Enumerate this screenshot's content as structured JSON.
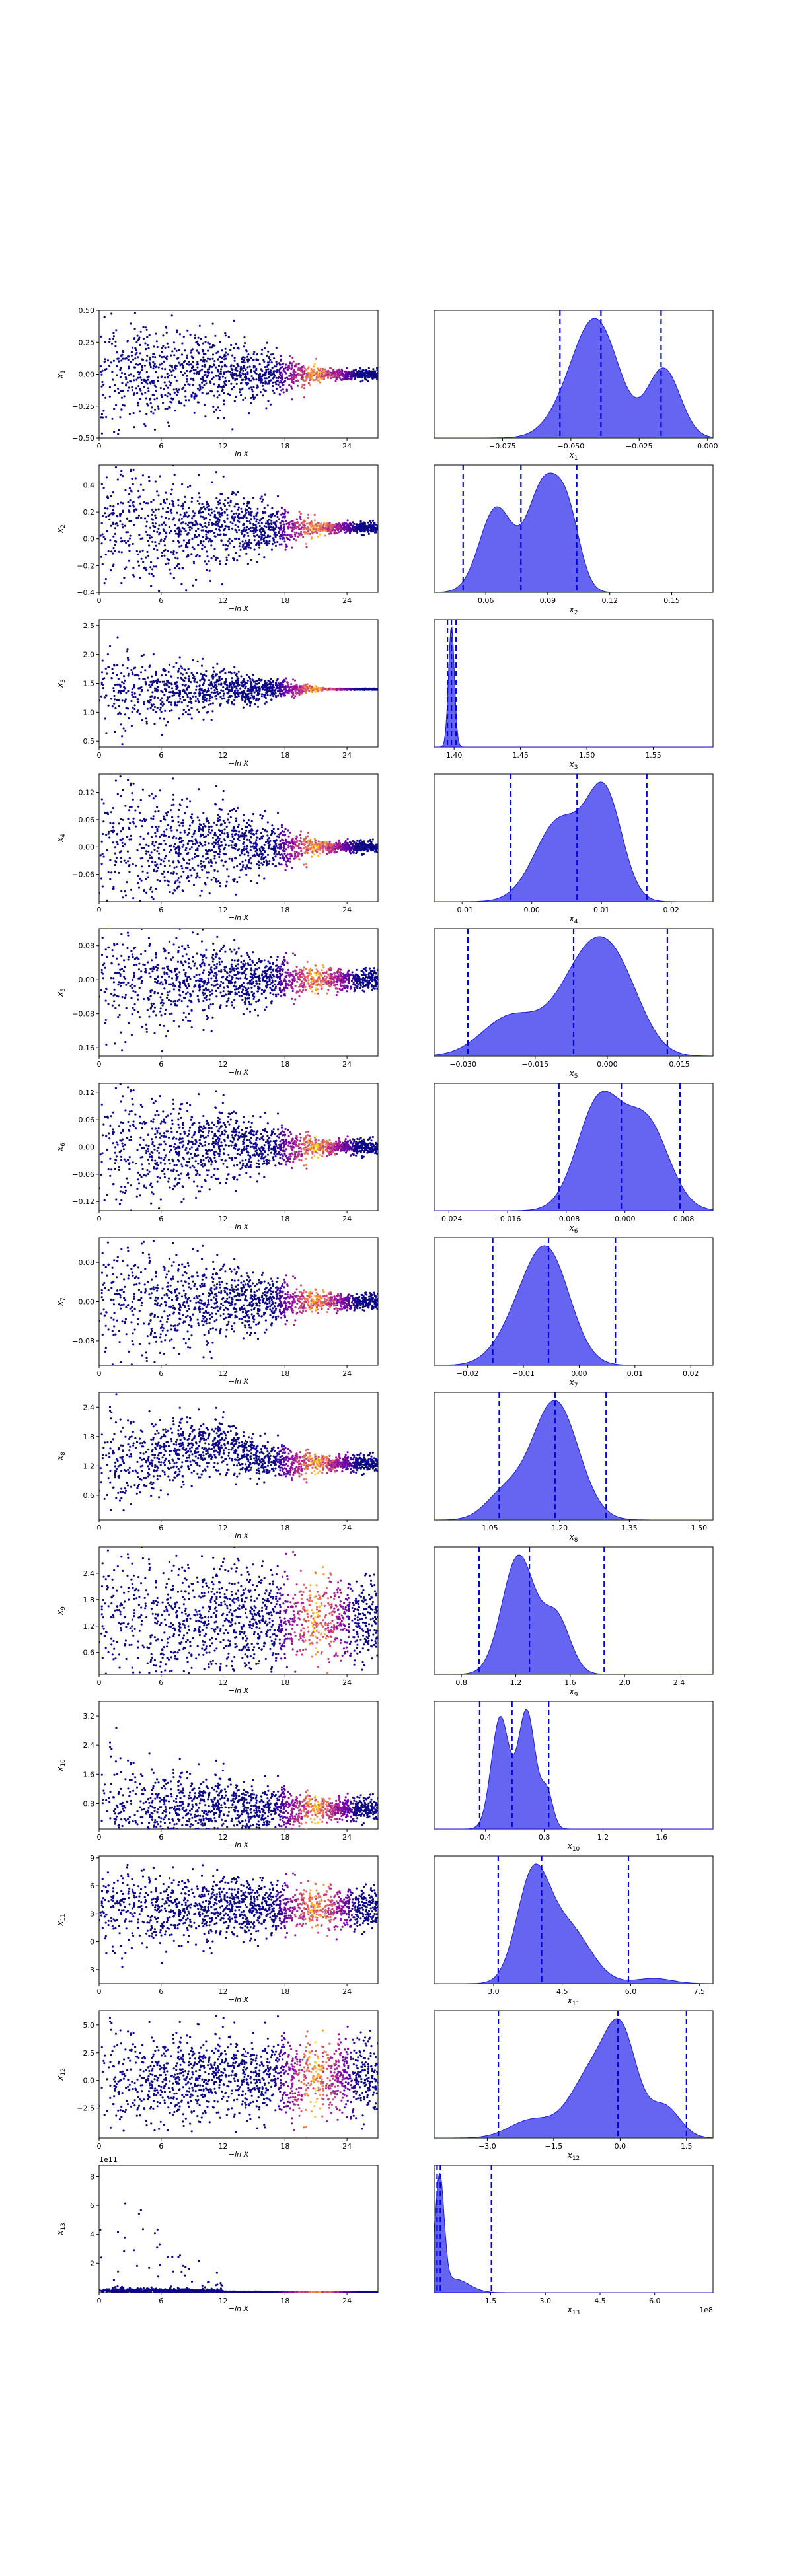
{
  "figure": {
    "background": "#ffffff"
  },
  "colors": {
    "posterior_fill": "#4a4aee",
    "posterior_line": "#1a1acc",
    "quantile_line": "#0000dd",
    "scatter_colormap": [
      "#0d0887",
      "#5302a3",
      "#8b0aa5",
      "#b83289",
      "#db5c68",
      "#f48849",
      "#febd2a",
      "#f0f921"
    ]
  },
  "chart_data": [
    {
      "type": "scatter",
      "panel": "trace",
      "param": 1,
      "ylabel": "x_1",
      "xlabel": "−ln X",
      "xlim": [
        0,
        27
      ],
      "xticks": [
        "0",
        "6",
        "12",
        "18",
        "24"
      ],
      "ylim": [
        -0.5,
        0.5
      ],
      "yticks": [
        "−0.50",
        "−0.25",
        "0.00",
        "0.25",
        "0.50"
      ],
      "center": 0.0,
      "spread_start": 0.28,
      "spread_end": 0.02,
      "tail": "none"
    },
    {
      "type": "area",
      "panel": "posterior",
      "param": 1,
      "xlabel": "x_1",
      "xlim": [
        -0.1,
        0.002
      ],
      "xticks": [
        "−0.075",
        "−0.050",
        "−0.025",
        "0.000"
      ],
      "quantiles": [
        -0.054,
        -0.039,
        -0.017
      ],
      "peaks": [
        [
          -0.04,
          0.95,
          0.008
        ],
        [
          -0.016,
          0.62,
          0.006
        ],
        [
          -0.05,
          0.25,
          0.008
        ]
      ]
    },
    {
      "type": "scatter",
      "panel": "trace",
      "param": 2,
      "ylabel": "x_2",
      "xlabel": "−ln X",
      "xlim": [
        0,
        27
      ],
      "xticks": [
        "0",
        "6",
        "12",
        "18",
        "24"
      ],
      "ylim": [
        -0.4,
        0.55
      ],
      "yticks": [
        "−0.4",
        "−0.2",
        "0.0",
        "0.2",
        "0.4"
      ],
      "center": 0.08,
      "spread_start": 0.28,
      "spread_end": 0.02,
      "tail": "none"
    },
    {
      "type": "area",
      "panel": "posterior",
      "param": 2,
      "xlabel": "x_2",
      "xlim": [
        0.035,
        0.17
      ],
      "xticks": [
        "0.06",
        "0.09",
        "0.12",
        "0.15"
      ],
      "quantiles": [
        0.049,
        0.077,
        0.104
      ],
      "peaks": [
        [
          0.065,
          0.75,
          0.008
        ],
        [
          0.088,
          0.95,
          0.008
        ],
        [
          0.1,
          0.55,
          0.006
        ]
      ]
    },
    {
      "type": "scatter",
      "panel": "trace",
      "param": 3,
      "ylabel": "x_3",
      "xlabel": "−ln X",
      "xlim": [
        0,
        27
      ],
      "xticks": [
        "0",
        "6",
        "12",
        "18",
        "24"
      ],
      "ylim": [
        0.4,
        2.6
      ],
      "yticks": [
        "0.5",
        "1.0",
        "1.5",
        "2.0",
        "2.5"
      ],
      "center": 1.4,
      "spread_start": 0.35,
      "spread_end": 0.005,
      "tail": "none"
    },
    {
      "type": "area",
      "panel": "posterior",
      "param": 3,
      "xlabel": "x_3",
      "xlim": [
        1.385,
        1.595
      ],
      "xticks": [
        "1.40",
        "1.45",
        "1.50",
        "1.55"
      ],
      "quantiles": [
        1.395,
        1.398,
        1.4015
      ],
      "peaks": [
        [
          1.398,
          1.0,
          0.0022
        ]
      ]
    },
    {
      "type": "scatter",
      "panel": "trace",
      "param": 4,
      "ylabel": "x_4",
      "xlabel": "−ln X",
      "xlim": [
        0,
        27
      ],
      "xticks": [
        "0",
        "6",
        "12",
        "18",
        "24"
      ],
      "ylim": [
        -0.12,
        0.16
      ],
      "yticks": [
        "−0.06",
        "0.00",
        "0.06",
        "0.12"
      ],
      "center": 0.0,
      "spread_start": 0.09,
      "spread_end": 0.006,
      "tail": "none"
    },
    {
      "type": "area",
      "panel": "posterior",
      "param": 4,
      "xlabel": "x_4",
      "xlim": [
        -0.014,
        0.026
      ],
      "xticks": [
        "−0.01",
        "0.00",
        "0.01",
        "0.02"
      ],
      "quantiles": [
        -0.003,
        0.0065,
        0.0165
      ],
      "peaks": [
        [
          0.004,
          0.75,
          0.0035
        ],
        [
          0.0105,
          0.95,
          0.0025
        ]
      ]
    },
    {
      "type": "scatter",
      "panel": "trace",
      "param": 5,
      "ylabel": "x_5",
      "xlabel": "−ln X",
      "xlim": [
        0,
        27
      ],
      "xticks": [
        "0",
        "6",
        "12",
        "18",
        "24"
      ],
      "ylim": [
        -0.18,
        0.12
      ],
      "yticks": [
        "−0.16",
        "−0.08",
        "0.00",
        "0.08"
      ],
      "center": 0.0,
      "spread_start": 0.07,
      "spread_end": 0.012,
      "tail": "none"
    },
    {
      "type": "area",
      "panel": "posterior",
      "param": 5,
      "xlabel": "x_5",
      "xlim": [
        -0.036,
        0.022
      ],
      "xticks": [
        "−0.030",
        "−0.015",
        "0.000",
        "0.015"
      ],
      "quantiles": [
        -0.029,
        -0.007,
        0.0125
      ],
      "peaks": [
        [
          -0.004,
          0.95,
          0.006
        ],
        [
          -0.02,
          0.4,
          0.006
        ],
        [
          0.003,
          0.5,
          0.005
        ]
      ]
    },
    {
      "type": "scatter",
      "panel": "trace",
      "param": 6,
      "ylabel": "x_6",
      "xlabel": "−ln X",
      "xlim": [
        0,
        27
      ],
      "xticks": [
        "0",
        "6",
        "12",
        "18",
        "24"
      ],
      "ylim": [
        -0.14,
        0.14
      ],
      "yticks": [
        "−0.12",
        "−0.06",
        "0.00",
        "0.06",
        "0.12"
      ],
      "center": 0.0,
      "spread_start": 0.08,
      "spread_end": 0.008,
      "tail": "none"
    },
    {
      "type": "area",
      "panel": "posterior",
      "param": 6,
      "xlabel": "x_6",
      "xlim": [
        -0.026,
        0.012
      ],
      "xticks": [
        "−0.024",
        "−0.016",
        "−0.008",
        "0.000",
        "0.008"
      ],
      "quantiles": [
        -0.009,
        -0.0005,
        0.0075
      ],
      "peaks": [
        [
          -0.0035,
          0.95,
          0.003
        ],
        [
          0.003,
          0.75,
          0.003
        ]
      ]
    },
    {
      "type": "scatter",
      "panel": "trace",
      "param": 7,
      "ylabel": "x_7",
      "xlabel": "−ln X",
      "xlim": [
        0,
        27
      ],
      "xticks": [
        "0",
        "6",
        "12",
        "18",
        "24"
      ],
      "ylim": [
        -0.13,
        0.13
      ],
      "yticks": [
        "−0.08",
        "0.00",
        "0.08"
      ],
      "center": 0.0,
      "spread_start": 0.07,
      "spread_end": 0.008,
      "tail": "none"
    },
    {
      "type": "area",
      "panel": "posterior",
      "param": 7,
      "xlabel": "x_7",
      "xlim": [
        -0.026,
        0.024
      ],
      "xticks": [
        "−0.02",
        "−0.01",
        "0.00",
        "0.01",
        "0.02"
      ],
      "quantiles": [
        -0.0155,
        -0.0055,
        0.0065
      ],
      "peaks": [
        [
          -0.0055,
          0.95,
          0.004
        ],
        [
          -0.011,
          0.3,
          0.004
        ]
      ]
    },
    {
      "type": "scatter",
      "panel": "trace",
      "param": 8,
      "ylabel": "x_8",
      "xlabel": "−ln X",
      "xlim": [
        0,
        27
      ],
      "xticks": [
        "0",
        "6",
        "12",
        "18",
        "24"
      ],
      "ylim": [
        0.1,
        2.7
      ],
      "yticks": [
        "0.6",
        "1.2",
        "1.8",
        "2.4"
      ],
      "center": 1.25,
      "spread_start": 0.5,
      "spread_end": 0.08,
      "tail": "hump"
    },
    {
      "type": "area",
      "panel": "posterior",
      "param": 8,
      "xlabel": "x_8",
      "xlim": [
        0.93,
        1.53
      ],
      "xticks": [
        "1.05",
        "1.20",
        "1.35",
        "1.50"
      ],
      "quantiles": [
        1.07,
        1.19,
        1.3
      ],
      "peaks": [
        [
          1.19,
          0.95,
          0.05
        ],
        [
          1.08,
          0.2,
          0.04
        ]
      ]
    },
    {
      "type": "scatter",
      "panel": "trace",
      "param": 9,
      "ylabel": "x_9",
      "xlabel": "−ln X",
      "xlim": [
        0,
        27
      ],
      "xticks": [
        "0",
        "6",
        "12",
        "18",
        "24"
      ],
      "ylim": [
        0.1,
        3.0
      ],
      "yticks": [
        "0.6",
        "1.2",
        "1.8",
        "2.4"
      ],
      "center": 1.35,
      "spread_start": 0.9,
      "spread_end": 0.45,
      "tail": "none"
    },
    {
      "type": "area",
      "panel": "posterior",
      "param": 9,
      "xlabel": "x_9",
      "xlim": [
        0.6,
        2.65
      ],
      "xticks": [
        "0.8",
        "1.2",
        "1.6",
        "2.0",
        "2.4"
      ],
      "quantiles": [
        0.93,
        1.3,
        1.85
      ],
      "peaks": [
        [
          1.22,
          0.95,
          0.12
        ],
        [
          1.5,
          0.45,
          0.1
        ]
      ]
    },
    {
      "type": "scatter",
      "panel": "trace",
      "param": 10,
      "ylabel": "x_10",
      "xlabel": "−ln X",
      "xlim": [
        0,
        27
      ],
      "xticks": [
        "0",
        "6",
        "12",
        "18",
        "24"
      ],
      "ylim": [
        0.1,
        3.6
      ],
      "yticks": [
        "0.8",
        "1.6",
        "2.4",
        "3.2"
      ],
      "center": 0.65,
      "spread_start": 0.8,
      "spread_end": 0.15,
      "tail": "none"
    },
    {
      "type": "area",
      "panel": "posterior",
      "param": 10,
      "xlabel": "x_10",
      "xlim": [
        0.05,
        1.95
      ],
      "xticks": [
        "0.4",
        "0.8",
        "1.2",
        "1.6"
      ],
      "quantiles": [
        0.36,
        0.58,
        0.83
      ],
      "peaks": [
        [
          0.5,
          0.8,
          0.06
        ],
        [
          0.68,
          0.85,
          0.06
        ],
        [
          0.82,
          0.25,
          0.04
        ]
      ]
    },
    {
      "type": "scatter",
      "panel": "trace",
      "param": 11,
      "ylabel": "x_11",
      "xlabel": "−ln X",
      "xlim": [
        0,
        27
      ],
      "xticks": [
        "0",
        "6",
        "12",
        "18",
        "24"
      ],
      "ylim": [
        -4.5,
        9.2
      ],
      "yticks": [
        "−3",
        "0",
        "3",
        "6",
        "9"
      ],
      "center": 3.6,
      "spread_start": 2.2,
      "spread_end": 1.1,
      "tail": "none"
    },
    {
      "type": "area",
      "panel": "posterior",
      "param": 11,
      "xlabel": "x_11",
      "xlim": [
        1.7,
        7.8
      ],
      "xticks": [
        "3.0",
        "4.5",
        "6.0",
        "7.5"
      ],
      "quantiles": [
        3.1,
        4.05,
        5.95
      ],
      "peaks": [
        [
          3.85,
          0.95,
          0.35
        ],
        [
          4.6,
          0.55,
          0.5
        ],
        [
          6.5,
          0.05,
          0.4
        ]
      ]
    },
    {
      "type": "scatter",
      "panel": "trace",
      "param": 12,
      "ylabel": "x_12",
      "xlabel": "−ln X",
      "xlim": [
        0,
        27
      ],
      "xticks": [
        "0",
        "6",
        "12",
        "18",
        "24"
      ],
      "ylim": [
        -5.2,
        6.3
      ],
      "yticks": [
        "−2.5",
        "0.0",
        "2.5",
        "5.0"
      ],
      "center": 0.3,
      "spread_start": 2.3,
      "spread_end": 1.6,
      "tail": "none"
    },
    {
      "type": "area",
      "panel": "posterior",
      "param": 12,
      "xlabel": "x_12",
      "xlim": [
        -4.2,
        2.1
      ],
      "xticks": [
        "−3.0",
        "−1.5",
        "0.0",
        "1.5"
      ],
      "quantiles": [
        -2.75,
        -0.05,
        1.5
      ],
      "peaks": [
        [
          -0.6,
          0.75,
          0.5
        ],
        [
          0.05,
          0.95,
          0.35
        ],
        [
          -2.0,
          0.2,
          0.5
        ],
        [
          1.0,
          0.35,
          0.35
        ]
      ]
    },
    {
      "type": "scatter",
      "panel": "trace",
      "param": 13,
      "ylabel": "x_13",
      "xlabel": "−ln X",
      "xlim": [
        0,
        27
      ],
      "xticks": [
        "0",
        "6",
        "12",
        "18",
        "24"
      ],
      "ylim": [
        -0.05,
        8.8
      ],
      "yticks": [
        "2",
        "4",
        "6",
        "8"
      ],
      "offset_label": "1e11",
      "center": 0.15,
      "spread_start": 0.15,
      "spread_end": 0.0,
      "tail": "spikes"
    },
    {
      "type": "area",
      "panel": "posterior",
      "param": 13,
      "xlabel": "x_13",
      "xlim": [
        -0.05,
        7.6
      ],
      "xticks": [
        "1.5",
        "3.0",
        "4.5",
        "6.0"
      ],
      "offset_label": "1e8",
      "quantiles": [
        0.03,
        0.12,
        1.52
      ],
      "peaks": [
        [
          0.1,
          1.0,
          0.12
        ],
        [
          0.5,
          0.12,
          0.4
        ]
      ]
    }
  ]
}
